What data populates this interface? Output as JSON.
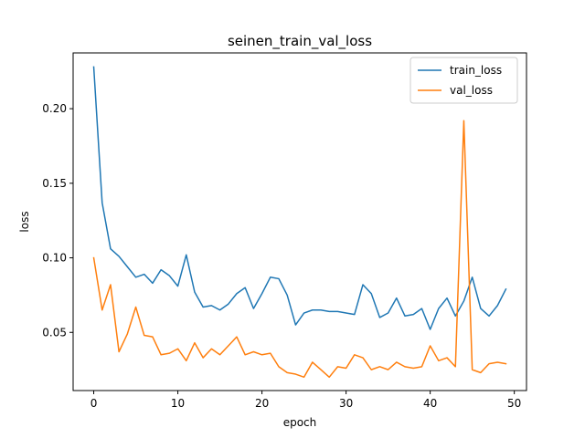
{
  "chart_data": {
    "type": "line",
    "title": "seinen_train_val_loss",
    "xlabel": "epoch",
    "ylabel": "loss",
    "xlim": [
      -2.45,
      51.45
    ],
    "ylim": [
      0.011,
      0.2374
    ],
    "xticks": [
      0,
      10,
      20,
      30,
      40,
      50
    ],
    "yticks": [
      0.05,
      0.1,
      0.15,
      0.2
    ],
    "ytick_labels": [
      "0.05",
      "0.10",
      "0.15",
      "0.20"
    ],
    "grid": false,
    "legend_position": "top-right",
    "series": [
      {
        "name": "train_loss",
        "color": "#1f77b4",
        "x": [
          0,
          1,
          2,
          3,
          4,
          5,
          6,
          7,
          8,
          9,
          10,
          11,
          12,
          13,
          14,
          15,
          16,
          17,
          18,
          19,
          20,
          21,
          22,
          23,
          24,
          25,
          26,
          27,
          28,
          29,
          30,
          31,
          32,
          33,
          34,
          35,
          36,
          37,
          38,
          39,
          40,
          41,
          42,
          43,
          44,
          45,
          46,
          47,
          48,
          49
        ],
        "values": [
          0.228,
          0.137,
          0.106,
          0.101,
          0.094,
          0.087,
          0.089,
          0.083,
          0.092,
          0.088,
          0.081,
          0.102,
          0.077,
          0.067,
          0.068,
          0.065,
          0.069,
          0.076,
          0.08,
          0.066,
          0.076,
          0.087,
          0.086,
          0.075,
          0.055,
          0.063,
          0.065,
          0.065,
          0.064,
          0.064,
          0.063,
          0.062,
          0.082,
          0.076,
          0.06,
          0.063,
          0.073,
          0.061,
          0.062,
          0.066,
          0.052,
          0.066,
          0.073,
          0.061,
          0.071,
          0.087,
          0.066,
          0.061,
          0.068,
          0.079
        ]
      },
      {
        "name": "val_loss",
        "color": "#ff7f0e",
        "x": [
          0,
          1,
          2,
          3,
          4,
          5,
          6,
          7,
          8,
          9,
          10,
          11,
          12,
          13,
          14,
          15,
          16,
          17,
          18,
          19,
          20,
          21,
          22,
          23,
          24,
          25,
          26,
          27,
          28,
          29,
          30,
          31,
          32,
          33,
          34,
          35,
          36,
          37,
          38,
          39,
          40,
          41,
          42,
          43,
          44,
          45,
          46,
          47,
          48,
          49
        ],
        "values": [
          0.1,
          0.065,
          0.082,
          0.037,
          0.049,
          0.067,
          0.048,
          0.047,
          0.035,
          0.036,
          0.039,
          0.031,
          0.043,
          0.033,
          0.039,
          0.035,
          0.041,
          0.047,
          0.035,
          0.037,
          0.035,
          0.036,
          0.027,
          0.023,
          0.022,
          0.02,
          0.03,
          0.025,
          0.02,
          0.027,
          0.026,
          0.035,
          0.033,
          0.025,
          0.027,
          0.025,
          0.03,
          0.027,
          0.026,
          0.027,
          0.041,
          0.031,
          0.033,
          0.027,
          0.192,
          0.025,
          0.023,
          0.029,
          0.03,
          0.029
        ]
      }
    ]
  }
}
